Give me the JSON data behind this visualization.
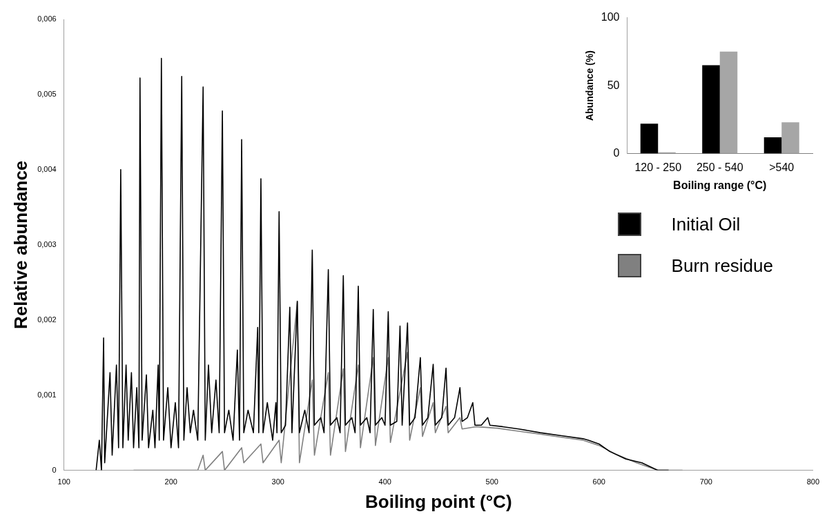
{
  "chart_data": [
    {
      "type": "line",
      "xlabel": "Boiling point (°C)",
      "ylabel": "Relative abundance",
      "xlim": [
        100,
        800
      ],
      "xticks": [
        100,
        200,
        300,
        400,
        500,
        600,
        700,
        800
      ],
      "ylim": [
        0,
        0.006
      ],
      "yticks": [
        0,
        {
          "value": 0.001,
          "label": "0,001"
        },
        {
          "value": 0.002,
          "label": "0,002"
        },
        {
          "value": 0.003,
          "label": "0,003"
        },
        {
          "value": 0.004,
          "label": "0,004"
        },
        {
          "value": 0.005,
          "label": "0,005"
        },
        {
          "value": 0.006,
          "label": "0,006"
        }
      ],
      "grid": false,
      "legend": "right",
      "marker": "none",
      "line_style": "solid",
      "series": [
        {
          "name": "Initial Oil",
          "color": "#000000",
          "x": [
            130,
            133,
            135,
            137,
            138,
            143,
            145,
            149,
            151,
            153,
            155,
            158,
            160,
            163,
            165,
            168,
            170,
            171,
            173,
            177,
            179,
            183,
            185,
            188,
            189,
            191,
            193,
            197,
            200,
            204,
            207,
            210,
            212,
            215,
            218,
            221,
            225,
            230,
            232,
            235,
            238,
            242,
            245,
            248,
            250,
            254,
            258,
            262,
            264,
            266,
            268,
            272,
            277,
            281,
            282,
            284,
            286,
            290,
            295,
            298,
            299,
            301,
            303,
            307,
            311,
            313,
            318,
            320,
            325,
            329,
            332,
            334,
            340,
            343,
            347,
            349,
            355,
            358,
            361,
            363,
            369,
            372,
            375,
            377,
            383,
            386,
            389,
            391,
            397,
            400,
            403,
            405,
            411,
            414,
            416,
            421,
            423,
            428,
            433,
            435,
            440,
            445,
            447,
            453,
            457,
            459,
            465,
            470,
            472,
            477,
            482,
            484,
            490,
            496,
            498,
            510,
            525,
            545,
            565,
            585,
            590,
            600,
            610,
            625,
            640,
            655,
            665
          ],
          "values": [
            0,
            0.0004,
            0,
            0.00176,
            0.0001,
            0.0013,
            0.0002,
            0.0014,
            0.0003,
            0.004,
            0.0003,
            0.0014,
            0.0004,
            0.0013,
            0.0003,
            0.0011,
            0.0003,
            0.00522,
            0.0004,
            0.00127,
            0.0003,
            0.0008,
            0.0003,
            0.0014,
            0.0004,
            0.00548,
            0.0004,
            0.0011,
            0.0003,
            0.0009,
            0.0003,
            0.00524,
            0.0004,
            0.0011,
            0.0005,
            0.0008,
            0.0004,
            0.0051,
            0.0004,
            0.0014,
            0.0005,
            0.0012,
            0.0005,
            0.00478,
            0.0005,
            0.0008,
            0.0004,
            0.0016,
            0.0004,
            0.0044,
            0.0005,
            0.0008,
            0.0005,
            0.0019,
            0.0005,
            0.00388,
            0.0005,
            0.0009,
            0.0004,
            0.0009,
            0.0005,
            0.00344,
            0.0005,
            0.0006,
            0.00217,
            0.0005,
            0.00225,
            0.0005,
            0.0008,
            0.0005,
            0.00293,
            0.0006,
            0.0007,
            0.0005,
            0.00267,
            0.0006,
            0.0007,
            0.0005,
            0.00259,
            0.0006,
            0.0007,
            0.0005,
            0.00245,
            0.0006,
            0.0007,
            0.0005,
            0.00214,
            0.0006,
            0.0007,
            0.0006,
            0.00211,
            0.0006,
            0.00065,
            0.00192,
            0.0006,
            0.00196,
            0.0006,
            0.0007,
            0.0015,
            0.0006,
            0.0007,
            0.00141,
            0.0006,
            0.0007,
            0.00136,
            0.0006,
            0.0007,
            0.0011,
            0.00065,
            0.0007,
            0.0009,
            0.0006,
            0.0006,
            0.0007,
            0.0006,
            0.00058,
            0.00055,
            0.0005,
            0.00046,
            0.00042,
            0.0004,
            0.00035,
            0.00025,
            0.00015,
            0.0001,
            0,
            0
          ]
        },
        {
          "name": "Burn residue",
          "color": "#808080",
          "x": [
            165,
            185,
            225,
            230,
            232,
            248,
            250,
            266,
            268,
            284,
            286,
            301,
            303,
            318,
            320,
            332,
            334,
            347,
            349,
            361,
            363,
            375,
            377,
            389,
            391,
            403,
            405,
            421,
            423,
            433,
            435,
            445,
            447,
            457,
            459,
            470,
            472,
            485,
            505,
            525,
            545,
            565,
            585,
            600,
            615,
            635,
            655,
            678
          ],
          "values": [
            0,
            0,
            0,
            0.0002,
            0,
            0.00025,
            0,
            0.0003,
            0.0001,
            0.00035,
            0.0001,
            0.0004,
            0.0001,
            0.00224,
            0.0001,
            0.0012,
            0.0002,
            0.0013,
            0.0002,
            0.00135,
            0.00025,
            0.0014,
            0.0003,
            0.0015,
            0.00033,
            0.0015,
            0.00037,
            0.00157,
            0.0004,
            0.0011,
            0.00045,
            0.0009,
            0.0005,
            0.00085,
            0.0005,
            0.0007,
            0.00055,
            0.00058,
            0.00056,
            0.00052,
            0.00048,
            0.00044,
            0.0004,
            0.00033,
            0.00022,
            0.0001,
            0,
            0
          ]
        }
      ]
    },
    {
      "type": "bar",
      "xlabel": "Boiling range (°C)",
      "ylabel": "Abundance (%)",
      "categories": [
        "120 - 250",
        "250 - 540",
        ">540"
      ],
      "ylim": [
        0,
        100
      ],
      "yticks": [
        0,
        50,
        100
      ],
      "grid": false,
      "legend": false,
      "series": [
        {
          "color": "#000000",
          "values": [
            22,
            65,
            12
          ]
        },
        {
          "color": "#a6a6a6",
          "values": [
            1,
            75,
            23
          ]
        }
      ]
    }
  ]
}
